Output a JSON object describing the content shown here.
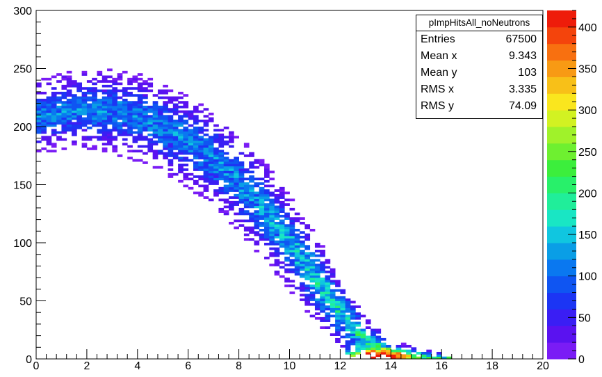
{
  "chart_data": {
    "type": "heatmap",
    "title": "",
    "xlabel": "",
    "ylabel": "",
    "xlim": [
      0,
      20
    ],
    "ylim": [
      0,
      300
    ],
    "x_ticks": [
      0,
      2,
      4,
      6,
      8,
      10,
      12,
      14,
      16,
      18,
      20
    ],
    "y_ticks": [
      0,
      50,
      100,
      150,
      200,
      250,
      300
    ],
    "colorbar": {
      "range": [
        0,
        420
      ],
      "ticks": [
        0,
        50,
        100,
        150,
        200,
        250,
        300,
        350,
        400
      ],
      "palette": [
        "#7a1cf5",
        "#5a12f0",
        "#3a1ef4",
        "#1c35f4",
        "#0f55f2",
        "#0a78f0",
        "#0a9ee6",
        "#10c6e0",
        "#19e6c4",
        "#20ee9a",
        "#28f06a",
        "#3cee3c",
        "#6ef030",
        "#a0f22a",
        "#d2f222",
        "#fae61e",
        "#f8c018",
        "#f89a14",
        "#f87010",
        "#f4440c",
        "#ee1c0a"
      ]
    },
    "stats": {
      "name": "pImpHitsAll_noNeutrons",
      "rows": [
        {
          "label": "Entries",
          "value": "67500"
        },
        {
          "label": "Mean x",
          "value": "9.343"
        },
        {
          "label": "Mean y",
          "value": "103"
        },
        {
          "label": "RMS x",
          "value": "3.335"
        },
        {
          "label": "RMS y",
          "value": "74.09"
        }
      ]
    },
    "band": {
      "x_range": [
        0,
        16.4
      ],
      "center_y": [
        [
          0,
          208
        ],
        [
          1,
          213
        ],
        [
          2,
          215
        ],
        [
          3,
          213
        ],
        [
          4,
          208
        ],
        [
          5,
          200
        ],
        [
          6,
          188
        ],
        [
          7,
          172
        ],
        [
          8,
          152
        ],
        [
          9,
          128
        ],
        [
          10,
          100
        ],
        [
          11,
          70
        ],
        [
          12,
          40
        ],
        [
          13,
          14
        ],
        [
          14,
          4
        ],
        [
          15,
          1
        ],
        [
          16.4,
          0
        ]
      ],
      "half_width_y": [
        [
          0,
          28
        ],
        [
          3,
          32
        ],
        [
          6,
          36
        ],
        [
          9,
          38
        ],
        [
          11,
          34
        ],
        [
          13,
          20
        ],
        [
          14,
          10
        ],
        [
          16.4,
          4
        ]
      ]
    },
    "peak": {
      "x": 13.3,
      "y": 1,
      "count": 415
    }
  }
}
